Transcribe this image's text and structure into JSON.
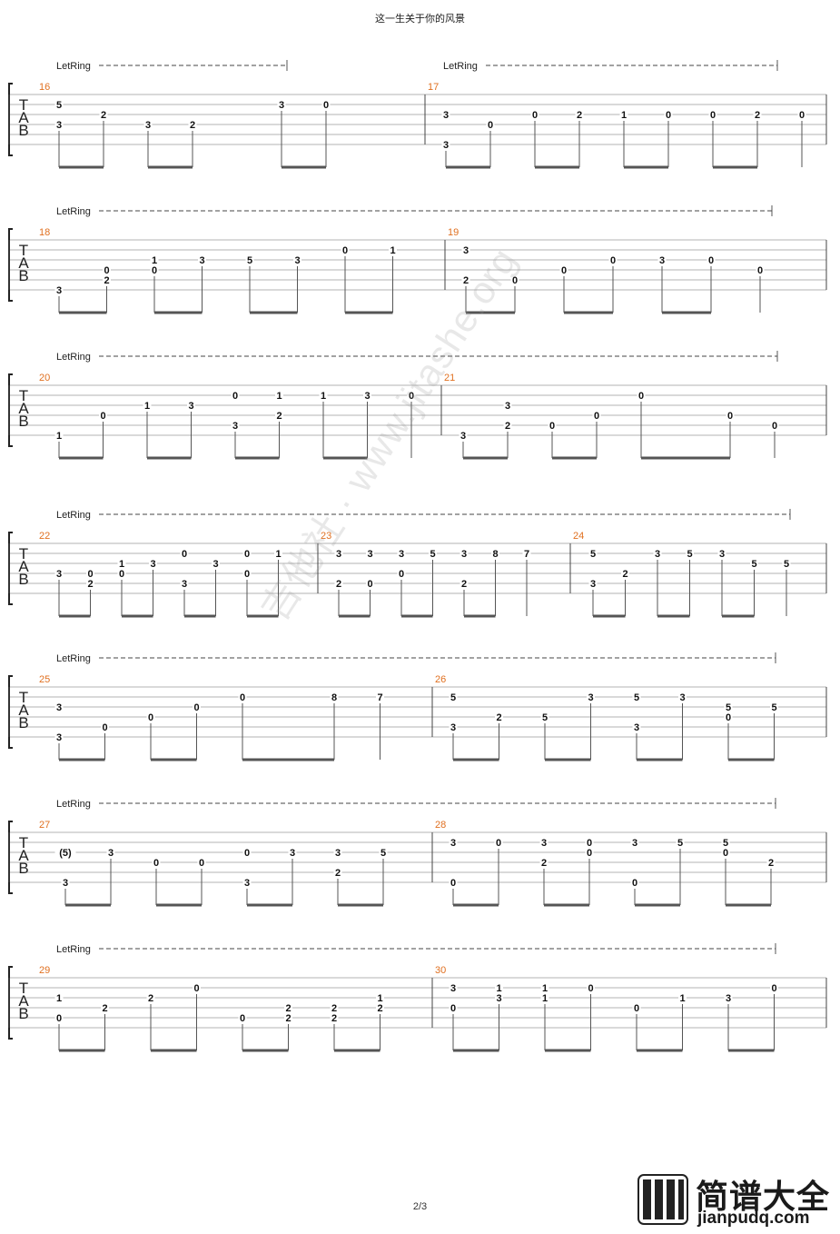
{
  "title": "这一生关于你的风景",
  "page_number": "2/3",
  "watermark": "吉他社 · www.jitashe.org",
  "logo": {
    "name_cn": "简谱大全",
    "url": "jianpudq.com"
  },
  "let_ring_label": "LetRing",
  "tab_clef": [
    "T",
    "A",
    "B"
  ],
  "rows": [
    {
      "measures": [
        {
          "number": "16",
          "notes": [
            {
              "c": 0,
              "s": 1,
              "f": "5"
            },
            {
              "c": 0,
              "s": 3,
              "f": "3"
            },
            {
              "c": 1,
              "s": 2,
              "f": "2"
            },
            {
              "c": 2,
              "s": 3,
              "f": "3"
            },
            {
              "c": 3,
              "s": 3,
              "f": "2"
            },
            {
              "c": 5,
              "s": 1,
              "f": "3"
            },
            {
              "c": 6,
              "s": 1,
              "f": "0"
            }
          ]
        },
        {
          "number": "17",
          "notes": [
            {
              "c": 0,
              "s": 2,
              "f": "3"
            },
            {
              "c": 0,
              "s": 5,
              "f": "3"
            },
            {
              "c": 1,
              "s": 3,
              "f": "0"
            },
            {
              "c": 2,
              "s": 2,
              "f": "0"
            },
            {
              "c": 3,
              "s": 2,
              "f": "2"
            },
            {
              "c": 4,
              "s": 2,
              "f": "1"
            },
            {
              "c": 5,
              "s": 2,
              "f": "0"
            },
            {
              "c": 6,
              "s": 2,
              "f": "0"
            },
            {
              "c": 7,
              "s": 2,
              "f": "2"
            },
            {
              "c": 8,
              "s": 2,
              "f": "0"
            }
          ]
        }
      ]
    },
    {
      "measures": [
        {
          "number": "18",
          "notes": [
            {
              "c": 0,
              "s": 5,
              "f": "3"
            },
            {
              "c": 1,
              "s": 3,
              "f": "0"
            },
            {
              "c": 1,
              "s": 4,
              "f": "2"
            },
            {
              "c": 2,
              "s": 2,
              "f": "1"
            },
            {
              "c": 2,
              "s": 3,
              "f": "0"
            },
            {
              "c": 3,
              "s": 2,
              "f": "3"
            },
            {
              "c": 4,
              "s": 2,
              "f": "5"
            },
            {
              "c": 5,
              "s": 2,
              "f": "3"
            },
            {
              "c": 6,
              "s": 1,
              "f": "0"
            },
            {
              "c": 7,
              "s": 1,
              "f": "1"
            }
          ]
        },
        {
          "number": "19",
          "notes": [
            {
              "c": 0,
              "s": 1,
              "f": "3"
            },
            {
              "c": 0,
              "s": 4,
              "f": "2"
            },
            {
              "c": 1,
              "s": 4,
              "f": "0"
            },
            {
              "c": 2,
              "s": 3,
              "f": "0"
            },
            {
              "c": 3,
              "s": 2,
              "f": "0"
            },
            {
              "c": 4,
              "s": 2,
              "f": "3"
            },
            {
              "c": 5,
              "s": 2,
              "f": "0"
            },
            {
              "c": 6,
              "s": 3,
              "f": "0"
            }
          ]
        }
      ]
    },
    {
      "measures": [
        {
          "number": "20",
          "notes": [
            {
              "c": 0,
              "s": 5,
              "f": "1"
            },
            {
              "c": 1,
              "s": 3,
              "f": "0"
            },
            {
              "c": 2,
              "s": 2,
              "f": "1"
            },
            {
              "c": 3,
              "s": 2,
              "f": "3"
            },
            {
              "c": 4,
              "s": 1,
              "f": "0"
            },
            {
              "c": 4,
              "s": 4,
              "f": "3"
            },
            {
              "c": 5,
              "s": 1,
              "f": "1"
            },
            {
              "c": 5,
              "s": 3,
              "f": "2"
            },
            {
              "c": 6,
              "s": 1,
              "f": "1"
            },
            {
              "c": 7,
              "s": 1,
              "f": "3"
            },
            {
              "c": 8,
              "s": 1,
              "f": "0"
            }
          ]
        },
        {
          "number": "21",
          "notes": [
            {
              "c": 0,
              "s": 5,
              "f": "3"
            },
            {
              "c": 1,
              "s": 2,
              "f": "3"
            },
            {
              "c": 1,
              "s": 4,
              "f": "2"
            },
            {
              "c": 2,
              "s": 4,
              "f": "0"
            },
            {
              "c": 3,
              "s": 3,
              "f": "0"
            },
            {
              "c": 4,
              "s": 1,
              "f": "0"
            },
            {
              "c": 6,
              "s": 3,
              "f": "0"
            },
            {
              "c": 7,
              "s": 4,
              "f": "0"
            }
          ]
        }
      ]
    },
    {
      "measures": [
        {
          "number": "22",
          "notes": [
            {
              "c": 0,
              "s": 3,
              "f": "3"
            },
            {
              "c": 1,
              "s": 3,
              "f": "0"
            },
            {
              "c": 1,
              "s": 4,
              "f": "2"
            },
            {
              "c": 2,
              "s": 2,
              "f": "1"
            },
            {
              "c": 2,
              "s": 3,
              "f": "0"
            },
            {
              "c": 3,
              "s": 2,
              "f": "3"
            },
            {
              "c": 4,
              "s": 1,
              "f": "0"
            },
            {
              "c": 4,
              "s": 4,
              "f": "3"
            },
            {
              "c": 5,
              "s": 2,
              "f": "3"
            },
            {
              "c": 6,
              "s": 1,
              "f": "0"
            },
            {
              "c": 6,
              "s": 3,
              "f": "0"
            },
            {
              "c": 7,
              "s": 1,
              "f": "1"
            }
          ]
        },
        {
          "number": "23",
          "notes": [
            {
              "c": 0,
              "s": 1,
              "f": "3"
            },
            {
              "c": 0,
              "s": 4,
              "f": "2"
            },
            {
              "c": 1,
              "s": 1,
              "f": "3"
            },
            {
              "c": 1,
              "s": 4,
              "f": "0"
            },
            {
              "c": 2,
              "s": 1,
              "f": "3"
            },
            {
              "c": 2,
              "s": 3,
              "f": "0"
            },
            {
              "c": 3,
              "s": 1,
              "f": "5"
            },
            {
              "c": 4,
              "s": 1,
              "f": "3"
            },
            {
              "c": 4,
              "s": 4,
              "f": "2"
            },
            {
              "c": 5,
              "s": 1,
              "f": "8"
            },
            {
              "c": 6,
              "s": 1,
              "f": "7"
            }
          ]
        },
        {
          "number": "24",
          "notes": [
            {
              "c": 0,
              "s": 1,
              "f": "5"
            },
            {
              "c": 0,
              "s": 4,
              "f": "3"
            },
            {
              "c": 1,
              "s": 3,
              "f": "2"
            },
            {
              "c": 2,
              "s": 1,
              "f": "3"
            },
            {
              "c": 3,
              "s": 1,
              "f": "5"
            },
            {
              "c": 4,
              "s": 1,
              "f": "3"
            },
            {
              "c": 5,
              "s": 2,
              "f": "5"
            },
            {
              "c": 6,
              "s": 2,
              "f": "5"
            }
          ]
        }
      ]
    },
    {
      "measures": [
        {
          "number": "25",
          "notes": [
            {
              "c": 0,
              "s": 2,
              "f": "3"
            },
            {
              "c": 0,
              "s": 5,
              "f": "3"
            },
            {
              "c": 1,
              "s": 4,
              "f": "0"
            },
            {
              "c": 2,
              "s": 3,
              "f": "0"
            },
            {
              "c": 3,
              "s": 2,
              "f": "0"
            },
            {
              "c": 4,
              "s": 1,
              "f": "0"
            },
            {
              "c": 6,
              "s": 1,
              "f": "8"
            },
            {
              "c": 7,
              "s": 1,
              "f": "7"
            }
          ]
        },
        {
          "number": "26",
          "notes": [
            {
              "c": 0,
              "s": 1,
              "f": "5"
            },
            {
              "c": 0,
              "s": 4,
              "f": "3"
            },
            {
              "c": 1,
              "s": 3,
              "f": "2"
            },
            {
              "c": 2,
              "s": 3,
              "f": "5"
            },
            {
              "c": 3,
              "s": 1,
              "f": "3"
            },
            {
              "c": 4,
              "s": 1,
              "f": "5"
            },
            {
              "c": 4,
              "s": 4,
              "f": "3"
            },
            {
              "c": 5,
              "s": 1,
              "f": "3"
            },
            {
              "c": 6,
              "s": 2,
              "f": "5"
            },
            {
              "c": 6,
              "s": 3,
              "f": "0"
            },
            {
              "c": 7,
              "s": 2,
              "f": "5"
            }
          ]
        }
      ]
    },
    {
      "measures": [
        {
          "number": "27",
          "notes": [
            {
              "c": 0,
              "s": 2,
              "f": "(5)"
            },
            {
              "c": 0,
              "s": 5,
              "f": "3"
            },
            {
              "c": 1,
              "s": 2,
              "f": "3"
            },
            {
              "c": 2,
              "s": 3,
              "f": "0"
            },
            {
              "c": 3,
              "s": 3,
              "f": "0"
            },
            {
              "c": 4,
              "s": 2,
              "f": "0"
            },
            {
              "c": 4,
              "s": 5,
              "f": "3"
            },
            {
              "c": 5,
              "s": 2,
              "f": "3"
            },
            {
              "c": 6,
              "s": 2,
              "f": "3"
            },
            {
              "c": 6,
              "s": 4,
              "f": "2"
            },
            {
              "c": 7,
              "s": 2,
              "f": "5"
            }
          ]
        },
        {
          "number": "28",
          "notes": [
            {
              "c": 0,
              "s": 1,
              "f": "3"
            },
            {
              "c": 0,
              "s": 5,
              "f": "0"
            },
            {
              "c": 1,
              "s": 1,
              "f": "0"
            },
            {
              "c": 2,
              "s": 1,
              "f": "3"
            },
            {
              "c": 2,
              "s": 3,
              "f": "2"
            },
            {
              "c": 3,
              "s": 1,
              "f": "0"
            },
            {
              "c": 3,
              "s": 2,
              "f": "0"
            },
            {
              "c": 4,
              "s": 1,
              "f": "3"
            },
            {
              "c": 4,
              "s": 5,
              "f": "0"
            },
            {
              "c": 5,
              "s": 1,
              "f": "5"
            },
            {
              "c": 6,
              "s": 1,
              "f": "5"
            },
            {
              "c": 6,
              "s": 2,
              "f": "0"
            },
            {
              "c": 7,
              "s": 3,
              "f": "2"
            }
          ]
        }
      ]
    },
    {
      "measures": [
        {
          "number": "29",
          "notes": [
            {
              "c": 0,
              "s": 2,
              "f": "1"
            },
            {
              "c": 0,
              "s": 4,
              "f": "0"
            },
            {
              "c": 1,
              "s": 3,
              "f": "2"
            },
            {
              "c": 2,
              "s": 2,
              "f": "2"
            },
            {
              "c": 3,
              "s": 1,
              "f": "0"
            },
            {
              "c": 4,
              "s": 4,
              "f": "0"
            },
            {
              "c": 5,
              "s": 3,
              "f": "2"
            },
            {
              "c": 5,
              "s": 4,
              "f": "2"
            },
            {
              "c": 6,
              "s": 3,
              "f": "2"
            },
            {
              "c": 6,
              "s": 4,
              "f": "2"
            },
            {
              "c": 7,
              "s": 2,
              "f": "1"
            },
            {
              "c": 7,
              "s": 3,
              "f": "2"
            }
          ]
        },
        {
          "number": "30",
          "notes": [
            {
              "c": 0,
              "s": 1,
              "f": "3"
            },
            {
              "c": 0,
              "s": 3,
              "f": "0"
            },
            {
              "c": 1,
              "s": 1,
              "f": "1"
            },
            {
              "c": 1,
              "s": 2,
              "f": "3"
            },
            {
              "c": 2,
              "s": 1,
              "f": "1"
            },
            {
              "c": 2,
              "s": 2,
              "f": "1"
            },
            {
              "c": 3,
              "s": 1,
              "f": "0"
            },
            {
              "c": 4,
              "s": 3,
              "f": "0"
            },
            {
              "c": 5,
              "s": 2,
              "f": "1"
            },
            {
              "c": 6,
              "s": 2,
              "f": "3"
            },
            {
              "c": 7,
              "s": 1,
              "f": "0"
            }
          ]
        }
      ]
    }
  ]
}
